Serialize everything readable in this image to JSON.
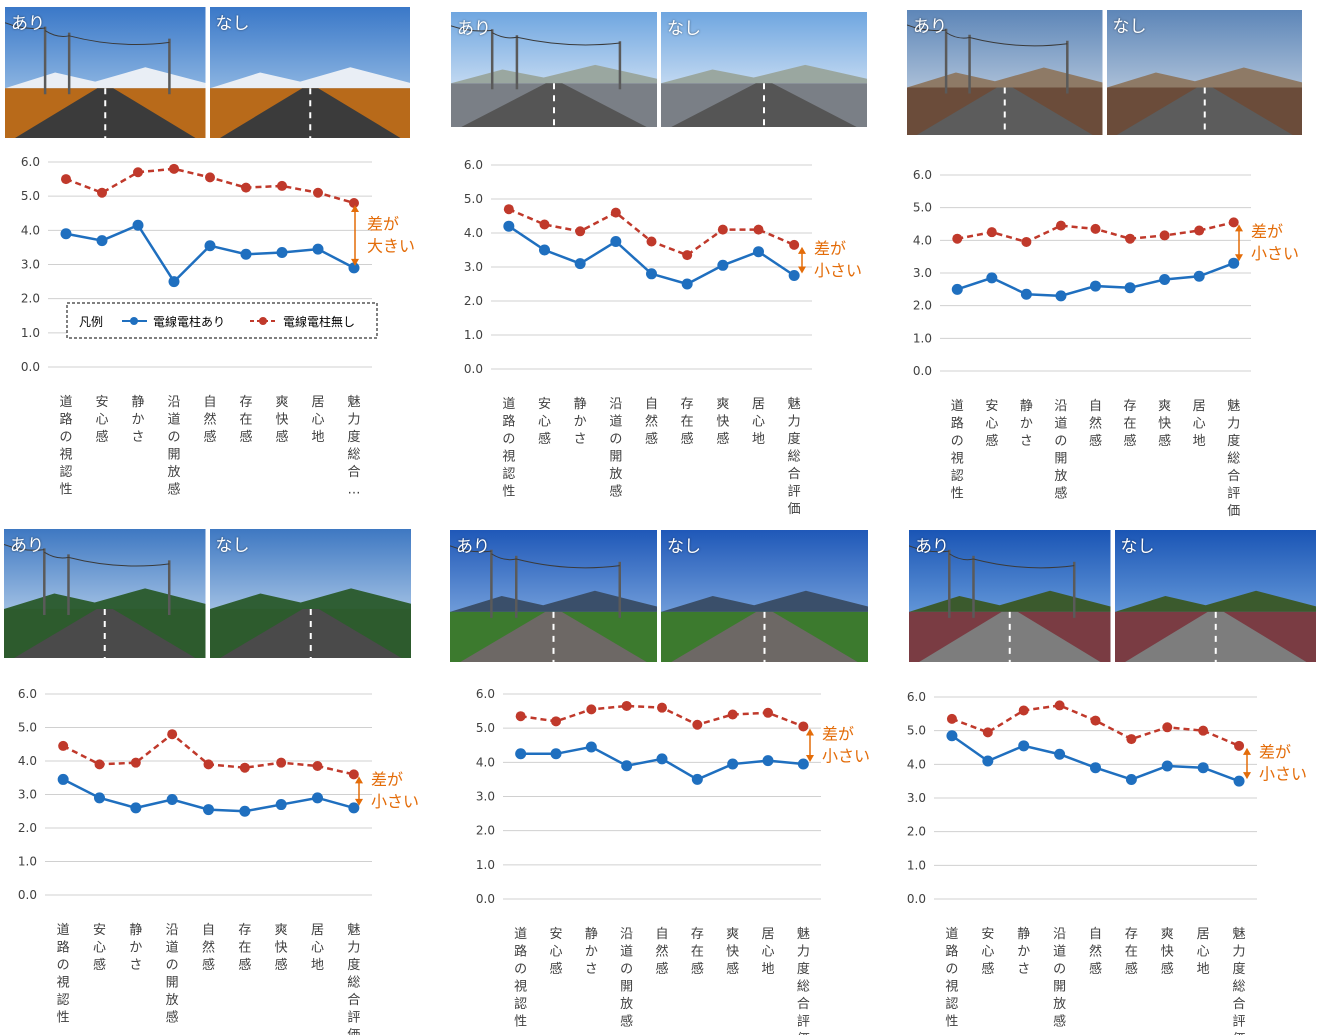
{
  "legend": {
    "title": "凡例",
    "with_poles": "電線電柱あり",
    "without_poles": "電線電柱無し"
  },
  "photo_labels": {
    "with": "あり",
    "without": "なし"
  },
  "colors": {
    "with_poles": "#1F6FBF",
    "without_poles": "#C0392B",
    "annotation": "#E36C09",
    "grid": "#D0D0D0",
    "axis_text": "#404040"
  },
  "chart_data": [
    {
      "type": "line",
      "scene": "rural-road-mountain",
      "categories": [
        "道路の視認性",
        "安心感",
        "静かさ",
        "沿道の開放感",
        "自然感",
        "存在感",
        "爽快感",
        "居心地",
        "魅力度総合…"
      ],
      "series": [
        {
          "name": "電線電柱あり",
          "values": [
            3.9,
            3.7,
            4.15,
            2.5,
            3.55,
            3.3,
            3.35,
            3.45,
            2.9
          ]
        },
        {
          "name": "電線電柱無し",
          "values": [
            5.5,
            5.1,
            5.7,
            5.8,
            5.55,
            5.25,
            5.3,
            5.1,
            4.8
          ]
        }
      ],
      "yticks": [
        "0.0",
        "1.0",
        "2.0",
        "3.0",
        "4.0",
        "5.0",
        "6.0"
      ],
      "ylim": [
        0,
        6
      ],
      "annotation": [
        "差が",
        "大きい"
      ],
      "legend": true
    },
    {
      "type": "line",
      "scene": "town-street",
      "categories": [
        "道路の視認性",
        "安心感",
        "静かさ",
        "沿道の開放感",
        "自然感",
        "存在感",
        "爽快感",
        "居心地",
        "魅力度総合評価"
      ],
      "series": [
        {
          "name": "電線電柱あり",
          "values": [
            4.2,
            3.5,
            3.1,
            3.75,
            2.8,
            2.5,
            3.05,
            3.45,
            2.75
          ]
        },
        {
          "name": "電線電柱無し",
          "values": [
            4.7,
            4.25,
            4.05,
            4.6,
            3.75,
            3.35,
            4.1,
            4.1,
            3.65
          ]
        }
      ],
      "yticks": [
        "0.0",
        "1.0",
        "2.0",
        "3.0",
        "4.0",
        "5.0",
        "6.0"
      ],
      "ylim": [
        0,
        6
      ],
      "annotation": [
        "差が",
        "小さい"
      ]
    },
    {
      "type": "line",
      "scene": "old-town-street",
      "categories": [
        "道路の視認性",
        "安心感",
        "静かさ",
        "沿道の開放感",
        "自然感",
        "存在感",
        "爽快感",
        "居心地",
        "魅力度総合評価"
      ],
      "series": [
        {
          "name": "電線電柱あり",
          "values": [
            2.5,
            2.85,
            2.35,
            2.3,
            2.6,
            2.55,
            2.8,
            2.9,
            3.3
          ]
        },
        {
          "name": "電線電柱無し",
          "values": [
            4.05,
            4.25,
            3.95,
            4.45,
            4.35,
            4.05,
            4.15,
            4.3,
            4.55
          ]
        }
      ],
      "yticks": [
        "0.0",
        "1.0",
        "2.0",
        "3.0",
        "4.0",
        "5.0",
        "6.0"
      ],
      "ylim": [
        0,
        6
      ],
      "annotation": [
        "差が",
        "小さい"
      ]
    },
    {
      "type": "line",
      "scene": "roadside-shops",
      "categories": [
        "道路の視認性",
        "安心感",
        "静かさ",
        "沿道の開放感",
        "自然感",
        "存在感",
        "爽快感",
        "居心地",
        "魅力度総合評価"
      ],
      "series": [
        {
          "name": "電線電柱あり",
          "values": [
            3.45,
            2.9,
            2.6,
            2.85,
            2.55,
            2.5,
            2.7,
            2.9,
            2.6
          ]
        },
        {
          "name": "電線電柱無し",
          "values": [
            4.45,
            3.9,
            3.95,
            4.8,
            3.9,
            3.8,
            3.95,
            3.85,
            3.6
          ]
        }
      ],
      "yticks": [
        "0.0",
        "1.0",
        "2.0",
        "3.0",
        "4.0",
        "5.0",
        "6.0"
      ],
      "ylim": [
        0,
        6
      ],
      "annotation": [
        "差が",
        "小さい"
      ]
    },
    {
      "type": "line",
      "scene": "farm-road",
      "categories": [
        "道路の視認性",
        "安心感",
        "静かさ",
        "沿道の開放感",
        "自然感",
        "存在感",
        "爽快感",
        "居心地",
        "魅力度総合評価"
      ],
      "series": [
        {
          "name": "電線電柱あり",
          "values": [
            4.25,
            4.25,
            4.45,
            3.9,
            4.1,
            3.5,
            3.95,
            4.05,
            3.95
          ]
        },
        {
          "name": "電線電柱無し",
          "values": [
            5.35,
            5.2,
            5.55,
            5.65,
            5.6,
            5.1,
            5.4,
            5.45,
            5.05
          ]
        }
      ],
      "yticks": [
        "0.0",
        "1.0",
        "2.0",
        "3.0",
        "4.0",
        "5.0",
        "6.0"
      ],
      "ylim": [
        0,
        6
      ],
      "annotation": [
        "差が",
        "小さい"
      ]
    },
    {
      "type": "line",
      "scene": "straight-road-fields",
      "categories": [
        "道路の視認性",
        "安心感",
        "静かさ",
        "沿道の開放感",
        "自然感",
        "存在感",
        "爽快感",
        "居心地",
        "魅力度総合評価"
      ],
      "series": [
        {
          "name": "電線電柱あり",
          "values": [
            4.85,
            4.1,
            4.55,
            4.3,
            3.9,
            3.55,
            3.95,
            3.9,
            3.5
          ]
        },
        {
          "name": "電線電柱無し",
          "values": [
            5.35,
            4.95,
            5.6,
            5.75,
            5.3,
            4.75,
            5.1,
            5.0,
            4.55
          ]
        }
      ],
      "yticks": [
        "0.0",
        "1.0",
        "2.0",
        "3.0",
        "4.0",
        "5.0",
        "6.0"
      ],
      "ylim": [
        0,
        6
      ],
      "annotation": [
        "差が",
        "小さい"
      ]
    }
  ]
}
